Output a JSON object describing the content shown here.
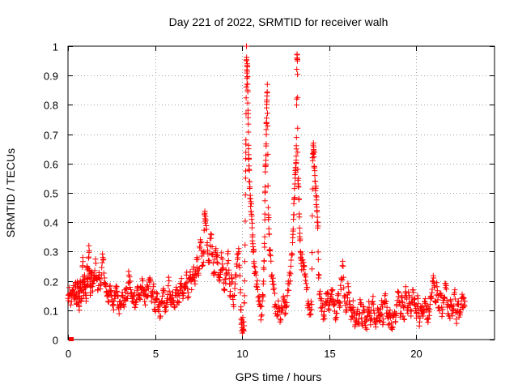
{
  "chart_data": {
    "type": "scatter",
    "title": "Day 221 of 2022, SRMTID for receiver walh",
    "xlabel": "GPS time / hours",
    "ylabel": "SRMTID / TECUs",
    "xlim": [
      0,
      24.5
    ],
    "ylim": [
      0,
      1
    ],
    "x_ticks": [
      0,
      5,
      10,
      15,
      20
    ],
    "x_tick_labels": [
      "0",
      "5",
      "10",
      "15",
      "20"
    ],
    "y_ticks": [
      0,
      0.1,
      0.2,
      0.3,
      0.4,
      0.5,
      0.6,
      0.7,
      0.8,
      0.9,
      1
    ],
    "y_tick_labels": [
      "0",
      "0.1",
      "0.2",
      "0.3",
      "0.4",
      "0.5",
      "0.6",
      "0.7",
      "0.8",
      "0.9",
      "1"
    ],
    "grid": true,
    "legend": "none",
    "marker": "plus",
    "marker_color": "#ff0000",
    "series": [
      {
        "name": "SRMTID",
        "points": [
          [
            0.0,
            0.14
          ],
          [
            0.1,
            0.15
          ],
          [
            0.2,
            0.13
          ],
          [
            0.3,
            0.17
          ],
          [
            0.4,
            0.15
          ],
          [
            0.45,
            0.18
          ],
          [
            0.5,
            0.12
          ],
          [
            0.55,
            0.19
          ],
          [
            0.6,
            0.16
          ],
          [
            0.65,
            0.1
          ],
          [
            0.7,
            0.2
          ],
          [
            0.75,
            0.13
          ],
          [
            0.8,
            0.17
          ],
          [
            0.85,
            0.28
          ],
          [
            0.9,
            0.15
          ],
          [
            0.95,
            0.22
          ],
          [
            1.0,
            0.18
          ],
          [
            1.05,
            0.14
          ],
          [
            1.1,
            0.25
          ],
          [
            1.15,
            0.19
          ],
          [
            1.2,
            0.32
          ],
          [
            1.25,
            0.21
          ],
          [
            1.3,
            0.16
          ],
          [
            1.35,
            0.23
          ],
          [
            1.4,
            0.18
          ],
          [
            1.5,
            0.2
          ],
          [
            1.6,
            0.26
          ],
          [
            1.7,
            0.17
          ],
          [
            1.8,
            0.22
          ],
          [
            1.9,
            0.19
          ],
          [
            2.0,
            0.28
          ],
          [
            2.1,
            0.21
          ],
          [
            2.2,
            0.16
          ],
          [
            2.3,
            0.13
          ],
          [
            2.4,
            0.18
          ],
          [
            2.5,
            0.15
          ],
          [
            2.6,
            0.12
          ],
          [
            2.7,
            0.14
          ],
          [
            2.8,
            0.18
          ],
          [
            2.9,
            0.11
          ],
          [
            3.0,
            0.13
          ],
          [
            3.1,
            0.15
          ],
          [
            3.2,
            0.12
          ],
          [
            3.3,
            0.16
          ],
          [
            3.4,
            0.14
          ],
          [
            3.5,
            0.22
          ],
          [
            3.6,
            0.17
          ],
          [
            3.7,
            0.13
          ],
          [
            3.8,
            0.15
          ],
          [
            3.9,
            0.12
          ],
          [
            4.0,
            0.18
          ],
          [
            4.1,
            0.14
          ],
          [
            4.2,
            0.16
          ],
          [
            4.3,
            0.2
          ],
          [
            4.4,
            0.13
          ],
          [
            4.5,
            0.17
          ],
          [
            4.6,
            0.15
          ],
          [
            4.7,
            0.21
          ],
          [
            4.8,
            0.13
          ],
          [
            4.9,
            0.18
          ],
          [
            5.0,
            0.1
          ],
          [
            5.1,
            0.14
          ],
          [
            5.2,
            0.12
          ],
          [
            5.3,
            0.08
          ],
          [
            5.4,
            0.13
          ],
          [
            5.5,
            0.16
          ],
          [
            5.6,
            0.11
          ],
          [
            5.7,
            0.14
          ],
          [
            5.8,
            0.2
          ],
          [
            5.9,
            0.12
          ],
          [
            6.0,
            0.15
          ],
          [
            6.1,
            0.11
          ],
          [
            6.2,
            0.17
          ],
          [
            6.3,
            0.13
          ],
          [
            6.4,
            0.15
          ],
          [
            6.5,
            0.19
          ],
          [
            6.6,
            0.14
          ],
          [
            6.7,
            0.18
          ],
          [
            6.8,
            0.22
          ],
          [
            6.9,
            0.16
          ],
          [
            7.0,
            0.21
          ],
          [
            7.1,
            0.17
          ],
          [
            7.2,
            0.24
          ],
          [
            7.3,
            0.19
          ],
          [
            7.4,
            0.28
          ],
          [
            7.5,
            0.22
          ],
          [
            7.6,
            0.34
          ],
          [
            7.7,
            0.25
          ],
          [
            7.8,
            0.3
          ],
          [
            7.85,
            0.43
          ],
          [
            7.9,
            0.42
          ],
          [
            8.0,
            0.33
          ],
          [
            8.1,
            0.27
          ],
          [
            8.2,
            0.36
          ],
          [
            8.3,
            0.29
          ],
          [
            8.4,
            0.23
          ],
          [
            8.5,
            0.31
          ],
          [
            8.6,
            0.26
          ],
          [
            8.7,
            0.2
          ],
          [
            8.8,
            0.28
          ],
          [
            8.9,
            0.24
          ],
          [
            9.0,
            0.17
          ],
          [
            9.1,
            0.22
          ],
          [
            9.2,
            0.3
          ],
          [
            9.3,
            0.15
          ],
          [
            9.4,
            0.21
          ],
          [
            9.5,
            0.12
          ],
          [
            9.6,
            0.19
          ],
          [
            9.7,
            0.25
          ],
          [
            9.8,
            0.31
          ],
          [
            9.9,
            0.16
          ],
          [
            9.95,
            0.07
          ],
          [
            10.0,
            0.04
          ],
          [
            10.05,
            0.06
          ],
          [
            10.1,
            0.03
          ],
          [
            10.15,
            0.2
          ],
          [
            10.2,
            0.55
          ],
          [
            10.22,
            0.68
          ],
          [
            10.25,
            1.0
          ],
          [
            10.28,
            0.89
          ],
          [
            10.3,
            0.93
          ],
          [
            10.32,
            0.85
          ],
          [
            10.35,
            0.77
          ],
          [
            10.38,
            0.63
          ],
          [
            10.4,
            0.58
          ],
          [
            10.45,
            0.52
          ],
          [
            10.5,
            0.47
          ],
          [
            10.55,
            0.41
          ],
          [
            10.6,
            0.35
          ],
          [
            10.65,
            0.3
          ],
          [
            10.7,
            0.25
          ],
          [
            10.8,
            0.22
          ],
          [
            10.9,
            0.17
          ],
          [
            11.0,
            0.12
          ],
          [
            11.1,
            0.08
          ],
          [
            11.2,
            0.15
          ],
          [
            11.25,
            0.24
          ],
          [
            11.3,
            0.35
          ],
          [
            11.32,
            0.52
          ],
          [
            11.35,
            0.59
          ],
          [
            11.38,
            0.66
          ],
          [
            11.4,
            0.74
          ],
          [
            11.42,
            0.81
          ],
          [
            11.45,
            0.87
          ],
          [
            11.5,
            0.45
          ],
          [
            11.55,
            0.36
          ],
          [
            11.6,
            0.29
          ],
          [
            11.7,
            0.22
          ],
          [
            11.8,
            0.17
          ],
          [
            11.9,
            0.12
          ],
          [
            12.0,
            0.08
          ],
          [
            12.1,
            0.11
          ],
          [
            12.2,
            0.07
          ],
          [
            12.3,
            0.1
          ],
          [
            12.4,
            0.13
          ],
          [
            12.5,
            0.09
          ],
          [
            12.6,
            0.15
          ],
          [
            12.7,
            0.19
          ],
          [
            12.8,
            0.25
          ],
          [
            12.9,
            0.33
          ],
          [
            12.95,
            0.41
          ],
          [
            13.0,
            0.48
          ],
          [
            13.05,
            0.55
          ],
          [
            13.1,
            0.6
          ],
          [
            13.12,
            0.65
          ],
          [
            13.15,
            0.96
          ],
          [
            13.18,
            0.95
          ],
          [
            13.2,
            0.58
          ],
          [
            13.25,
            0.52
          ],
          [
            13.3,
            0.38
          ],
          [
            13.35,
            0.3
          ],
          [
            13.4,
            0.27
          ],
          [
            13.5,
            0.25
          ],
          [
            13.6,
            0.22
          ],
          [
            13.7,
            0.17
          ],
          [
            13.8,
            0.13
          ],
          [
            13.9,
            0.1
          ],
          [
            14.0,
            0.12
          ],
          [
            14.05,
            0.62
          ],
          [
            14.1,
            0.67
          ],
          [
            14.12,
            0.64
          ],
          [
            14.15,
            0.59
          ],
          [
            14.2,
            0.54
          ],
          [
            14.25,
            0.49
          ],
          [
            14.3,
            0.44
          ],
          [
            14.35,
            0.4
          ],
          [
            14.4,
            0.21
          ],
          [
            14.5,
            0.14
          ],
          [
            14.6,
            0.11
          ],
          [
            14.7,
            0.08
          ],
          [
            14.8,
            0.13
          ],
          [
            14.9,
            0.16
          ],
          [
            15.0,
            0.1
          ],
          [
            15.1,
            0.14
          ],
          [
            15.2,
            0.17
          ],
          [
            15.3,
            0.12
          ],
          [
            15.4,
            0.09
          ],
          [
            15.5,
            0.15
          ],
          [
            15.6,
            0.11
          ],
          [
            15.7,
            0.21
          ],
          [
            15.8,
            0.25
          ],
          [
            15.9,
            0.13
          ],
          [
            16.0,
            0.1
          ],
          [
            16.1,
            0.18
          ],
          [
            16.2,
            0.12
          ],
          [
            16.3,
            0.08
          ],
          [
            16.4,
            0.11
          ],
          [
            16.5,
            0.05
          ],
          [
            16.6,
            0.09
          ],
          [
            16.7,
            0.07
          ],
          [
            16.8,
            0.12
          ],
          [
            16.9,
            0.06
          ],
          [
            17.0,
            0.1
          ],
          [
            17.1,
            0.04
          ],
          [
            17.2,
            0.08
          ],
          [
            17.3,
            0.11
          ],
          [
            17.4,
            0.07
          ],
          [
            17.5,
            0.13
          ],
          [
            17.6,
            0.09
          ],
          [
            17.7,
            0.06
          ],
          [
            17.8,
            0.1
          ],
          [
            17.9,
            0.08
          ],
          [
            18.0,
            0.12
          ],
          [
            18.1,
            0.07
          ],
          [
            18.2,
            0.15
          ],
          [
            18.3,
            0.09
          ],
          [
            18.4,
            0.05
          ],
          [
            18.5,
            0.1
          ],
          [
            18.6,
            0.04
          ],
          [
            18.7,
            0.08
          ],
          [
            18.8,
            0.06
          ],
          [
            18.9,
            0.12
          ],
          [
            19.0,
            0.16
          ],
          [
            19.1,
            0.09
          ],
          [
            19.2,
            0.13
          ],
          [
            19.3,
            0.07
          ],
          [
            19.4,
            0.18
          ],
          [
            19.5,
            0.11
          ],
          [
            19.6,
            0.15
          ],
          [
            19.7,
            0.08
          ],
          [
            19.8,
            0.17
          ],
          [
            19.9,
            0.12
          ],
          [
            20.0,
            0.09
          ],
          [
            20.1,
            0.14
          ],
          [
            20.2,
            0.06
          ],
          [
            20.3,
            0.11
          ],
          [
            20.4,
            0.08
          ],
          [
            20.5,
            0.13
          ],
          [
            20.6,
            0.1
          ],
          [
            20.7,
            0.07
          ],
          [
            20.8,
            0.12
          ],
          [
            20.9,
            0.16
          ],
          [
            21.0,
            0.21
          ],
          [
            21.1,
            0.13
          ],
          [
            21.2,
            0.18
          ],
          [
            21.3,
            0.11
          ],
          [
            21.4,
            0.15
          ],
          [
            21.5,
            0.09
          ],
          [
            21.6,
            0.14
          ],
          [
            21.7,
            0.19
          ],
          [
            21.8,
            0.12
          ],
          [
            21.9,
            0.08
          ],
          [
            22.0,
            0.13
          ],
          [
            22.1,
            0.1
          ],
          [
            22.2,
            0.16
          ],
          [
            22.3,
            0.07
          ],
          [
            22.4,
            0.12
          ],
          [
            22.5,
            0.09
          ],
          [
            22.6,
            0.14
          ],
          [
            22.7,
            0.11
          ],
          [
            22.8,
            0.13
          ]
        ]
      }
    ]
  }
}
